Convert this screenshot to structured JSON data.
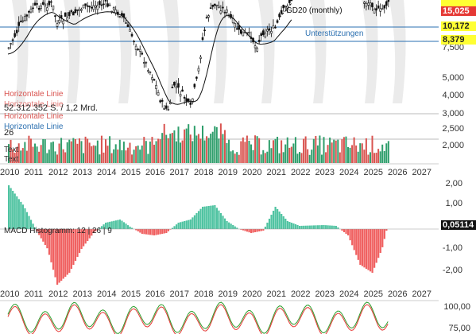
{
  "years": [
    "2010",
    "2011",
    "2012",
    "2013",
    "2014",
    "2015",
    "2016",
    "2017",
    "2018",
    "2019",
    "2020",
    "2021",
    "2022",
    "2023",
    "2024",
    "2025",
    "2026",
    "2027"
  ],
  "price_axis": [
    "7,500",
    "5,000",
    "4,000",
    "3,000",
    "2,500",
    "2,000"
  ],
  "macd_axis": [
    "2,00",
    "1,00",
    "-1,00",
    "-2,00"
  ],
  "stoch_axis": [
    "100,00",
    "75,00"
  ],
  "badges": {
    "price_a": "15,025",
    "price_b": "10,172",
    "price_c": "8,379",
    "macd_value": "0,05114"
  },
  "labels": {
    "gd20": "GD20 (monthly)",
    "unterstuetzungen": "Unterstützungen",
    "horiz_1": "Horizontale Linie",
    "horiz_2": "Horizontale Linie",
    "horiz_3": "Horizontale Linie",
    "horiz_4": "Horizontale Linie",
    "volume": "52.312.352 S. / 1,2 Mrd.",
    "volume_2": "26",
    "text_1": "Text",
    "text_2": "Text",
    "macd_hist": "MACD Histogramm: 12 | 26 | 9"
  },
  "colors": {
    "up": "#2e9e6b",
    "down": "#d9534f",
    "macd_pos": "#4fc3a1",
    "macd_neg": "#f06060",
    "support_line": "#2a6fb0",
    "badge_red": "#e53935",
    "badge_yellow": "#ffff33"
  }
}
